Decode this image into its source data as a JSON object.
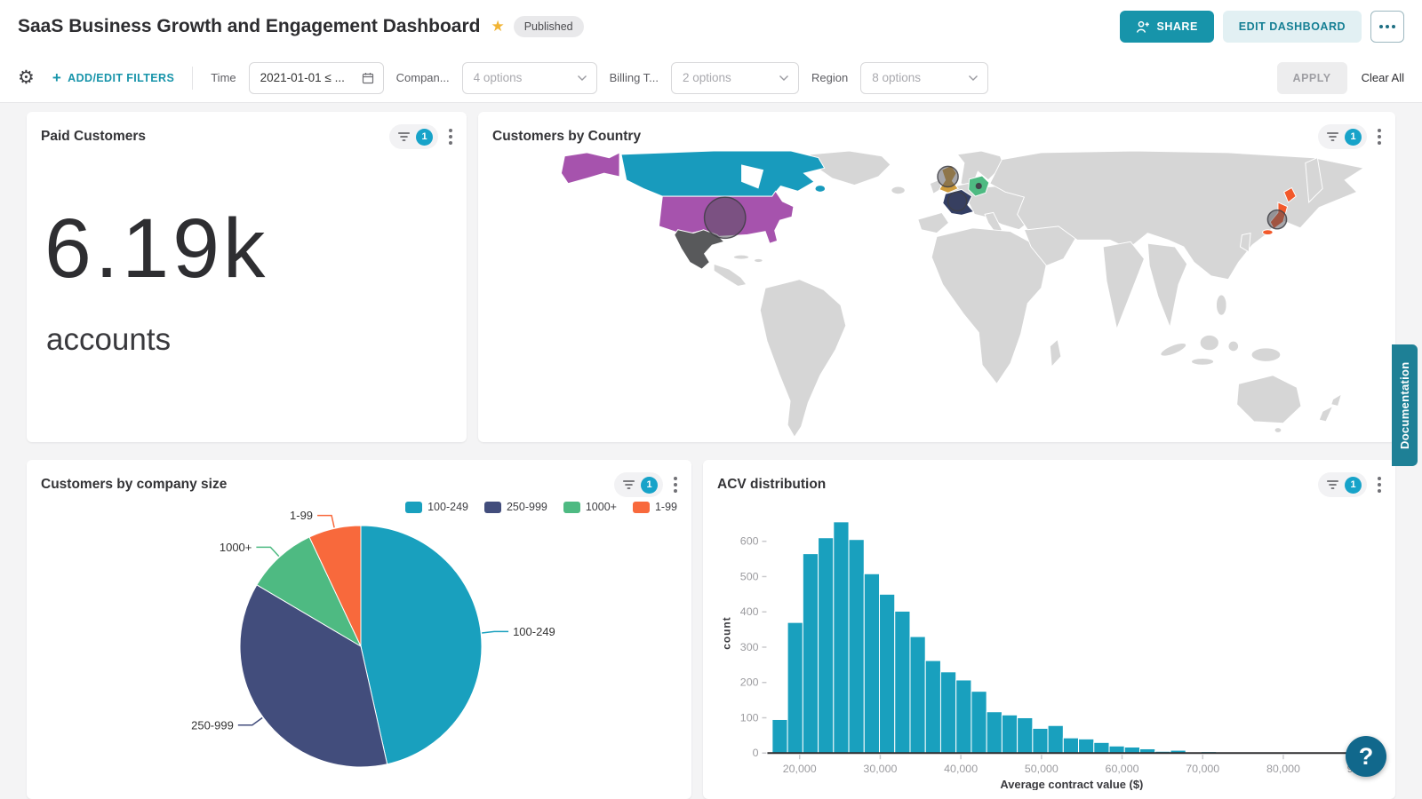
{
  "header": {
    "title": "SaaS Business Growth and Engagement Dashboard",
    "status_badge": "Published",
    "share_label": "SHARE",
    "edit_label": "EDIT DASHBOARD"
  },
  "filter_bar": {
    "add_edit_label": "ADD/EDIT FILTERS",
    "apply_label": "APPLY",
    "clear_all_label": "Clear All",
    "filters": [
      {
        "label": "Time",
        "value": "2021-01-01 ≤ ...",
        "type": "date"
      },
      {
        "label": "Compan...",
        "value": "4 options",
        "type": "select"
      },
      {
        "label": "Billing T...",
        "value": "2 options",
        "type": "select"
      },
      {
        "label": "Region",
        "value": "8 options",
        "type": "select"
      }
    ]
  },
  "widgets": {
    "paid_customers": {
      "title": "Paid Customers",
      "filter_count": "1",
      "value": "6.19k",
      "unit": "accounts"
    },
    "customers_by_country": {
      "title": "Customers by Country",
      "filter_count": "1"
    },
    "customers_by_company_size": {
      "title": "Customers by company size",
      "filter_count": "1"
    },
    "acv_distribution": {
      "title": "ACV distribution",
      "filter_count": "1"
    }
  },
  "side": {
    "documentation_tab": "Documentation",
    "help_label": "?"
  },
  "map": {
    "base_color": "#d6d6d6",
    "countries": [
      {
        "name": "Canada",
        "color": "#189bbd"
      },
      {
        "name": "United States",
        "color": "#a653ad"
      },
      {
        "name": "Alaska (US)",
        "color": "#a653ad"
      },
      {
        "name": "Mexico",
        "color": "#58595b"
      },
      {
        "name": "United Kingdom",
        "color": "#cf9c3c"
      },
      {
        "name": "France",
        "color": "#333e64"
      },
      {
        "name": "Germany",
        "color": "#4eba82"
      },
      {
        "name": "Japan",
        "color": "#f2592b"
      }
    ],
    "bubbles": [
      {
        "country": "United States",
        "r": "24"
      },
      {
        "country": "United Kingdom",
        "r": "12"
      },
      {
        "country": "France",
        "r": "11"
      },
      {
        "country": "Germany",
        "r": "3"
      },
      {
        "country": "Japan",
        "r": "11"
      }
    ]
  },
  "chart_data": [
    {
      "type": "pie",
      "title": "Customers by company size",
      "labels": [
        "100-249",
        "250-999",
        "1000+",
        "1-99"
      ],
      "values": [
        46.5,
        37,
        9.5,
        7
      ],
      "colors": [
        "#19a0be",
        "#424d7c",
        "#4eba82",
        "#f8693c"
      ],
      "legend_position": "top-right"
    },
    {
      "type": "bar",
      "title": "ACV distribution",
      "xlabel": "Average contract value ($)",
      "ylabel": "count",
      "bin_start": 16600,
      "bin_width": 1900,
      "counts": [
        95,
        370,
        565,
        610,
        655,
        605,
        508,
        450,
        402,
        330,
        262,
        230,
        207,
        175,
        117,
        108,
        100,
        70,
        78,
        43,
        40,
        30,
        20,
        17,
        12,
        5,
        8,
        0,
        4
      ],
      "xlim": [
        16000,
        91500
      ],
      "ylim": [
        0,
        680
      ],
      "x_ticks": [
        20000,
        30000,
        40000,
        50000,
        60000,
        70000,
        80000,
        90000
      ],
      "y_ticks": [
        0,
        100,
        200,
        300,
        400,
        500,
        600
      ],
      "bar_color": "#19a0be"
    },
    {
      "type": "choropleth",
      "title": "Customers by Country",
      "highlighted_countries": [
        "Canada",
        "United States",
        "Mexico",
        "United Kingdom",
        "France",
        "Germany",
        "Japan"
      ]
    }
  ]
}
